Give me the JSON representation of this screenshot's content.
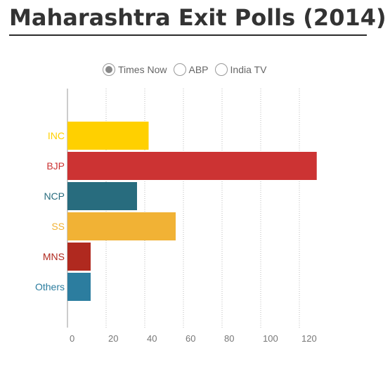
{
  "page": {
    "title": "Maharashtra Exit Polls (2014)"
  },
  "poll_selector": {
    "options": [
      {
        "label": "Times Now",
        "selected": true
      },
      {
        "label": "ABP",
        "selected": false
      },
      {
        "label": "India TV",
        "selected": false
      }
    ]
  },
  "chart_data": {
    "type": "bar",
    "orientation": "horizontal",
    "title": "Maharashtra Exit Polls (2014)",
    "categories": [
      "INC",
      "BJP",
      "NCP",
      "SS",
      "MNS",
      "Others"
    ],
    "values": [
      42,
      129,
      36,
      56,
      12,
      12
    ],
    "colors": [
      "#FFD000",
      "#CC3333",
      "#286C7E",
      "#F1B235",
      "#B0291F",
      "#2C7D9F"
    ],
    "xlim": [
      0,
      130
    ],
    "x_ticks": [
      0,
      20,
      40,
      60,
      80,
      100,
      120
    ],
    "xlabel": "",
    "ylabel": "",
    "grid": true,
    "grid_style": "vertical dotted"
  }
}
